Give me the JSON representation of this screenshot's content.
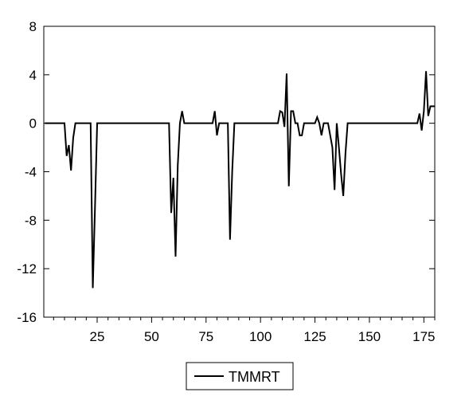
{
  "chart_data": {
    "type": "line",
    "title": "",
    "xlabel": "",
    "ylabel": "",
    "xlim": [
      1,
      180
    ],
    "ylim": [
      -16,
      8
    ],
    "yticks": [
      8,
      4,
      0,
      -4,
      -8,
      -12,
      -16
    ],
    "ytick_labels": [
      "8",
      "4",
      "0",
      "-4",
      "-8",
      "-12",
      "-16"
    ],
    "xticks": [
      25,
      50,
      75,
      100,
      125,
      150,
      175
    ],
    "xtick_labels": [
      "25",
      "50",
      "75",
      "100",
      "125",
      "150",
      "175"
    ],
    "grid": false,
    "legend": "bottom-center",
    "series": [
      {
        "name": "TMMRT",
        "color": "#000000",
        "points": [
          [
            1,
            0
          ],
          [
            10,
            0
          ],
          [
            11,
            -2.7
          ],
          [
            12,
            -1.8
          ],
          [
            13,
            -3.9
          ],
          [
            14,
            -1.2
          ],
          [
            15,
            0
          ],
          [
            22,
            0
          ],
          [
            23,
            -13.6
          ],
          [
            24,
            -7.0
          ],
          [
            25,
            0
          ],
          [
            58,
            0
          ],
          [
            59,
            -7.4
          ],
          [
            60,
            -4.5
          ],
          [
            61,
            -11.0
          ],
          [
            62,
            -3.5
          ],
          [
            63,
            0
          ],
          [
            64,
            1.0
          ],
          [
            65,
            0
          ],
          [
            78,
            0
          ],
          [
            79,
            1.0
          ],
          [
            80,
            -1.0
          ],
          [
            81,
            0
          ],
          [
            84,
            0
          ],
          [
            85,
            0
          ],
          [
            86,
            -9.6
          ],
          [
            87,
            -4.0
          ],
          [
            88,
            0
          ],
          [
            108,
            0
          ],
          [
            109,
            1.0
          ],
          [
            110,
            0.9
          ],
          [
            111,
            -0.3
          ],
          [
            112,
            4.1
          ],
          [
            113,
            -5.2
          ],
          [
            114,
            1.0
          ],
          [
            115,
            1.0
          ],
          [
            116,
            0
          ],
          [
            117,
            0
          ],
          [
            118,
            -1.0
          ],
          [
            119,
            -1.0
          ],
          [
            120,
            0
          ],
          [
            125,
            0
          ],
          [
            126,
            0.5
          ],
          [
            127,
            0
          ],
          [
            128,
            -1.0
          ],
          [
            129,
            0
          ],
          [
            131,
            0
          ],
          [
            132,
            -1.0
          ],
          [
            133,
            -2.0
          ],
          [
            134,
            -5.5
          ],
          [
            135,
            0
          ],
          [
            136,
            -2.0
          ],
          [
            137,
            -4.2
          ],
          [
            138,
            -6.0
          ],
          [
            139,
            -2.5
          ],
          [
            140,
            0
          ],
          [
            172,
            0
          ],
          [
            173,
            0.8
          ],
          [
            174,
            -0.6
          ],
          [
            175,
            1.0
          ],
          [
            176,
            4.3
          ],
          [
            177,
            0.6
          ],
          [
            178,
            1.4
          ],
          [
            180,
            1.4
          ]
        ]
      }
    ]
  }
}
